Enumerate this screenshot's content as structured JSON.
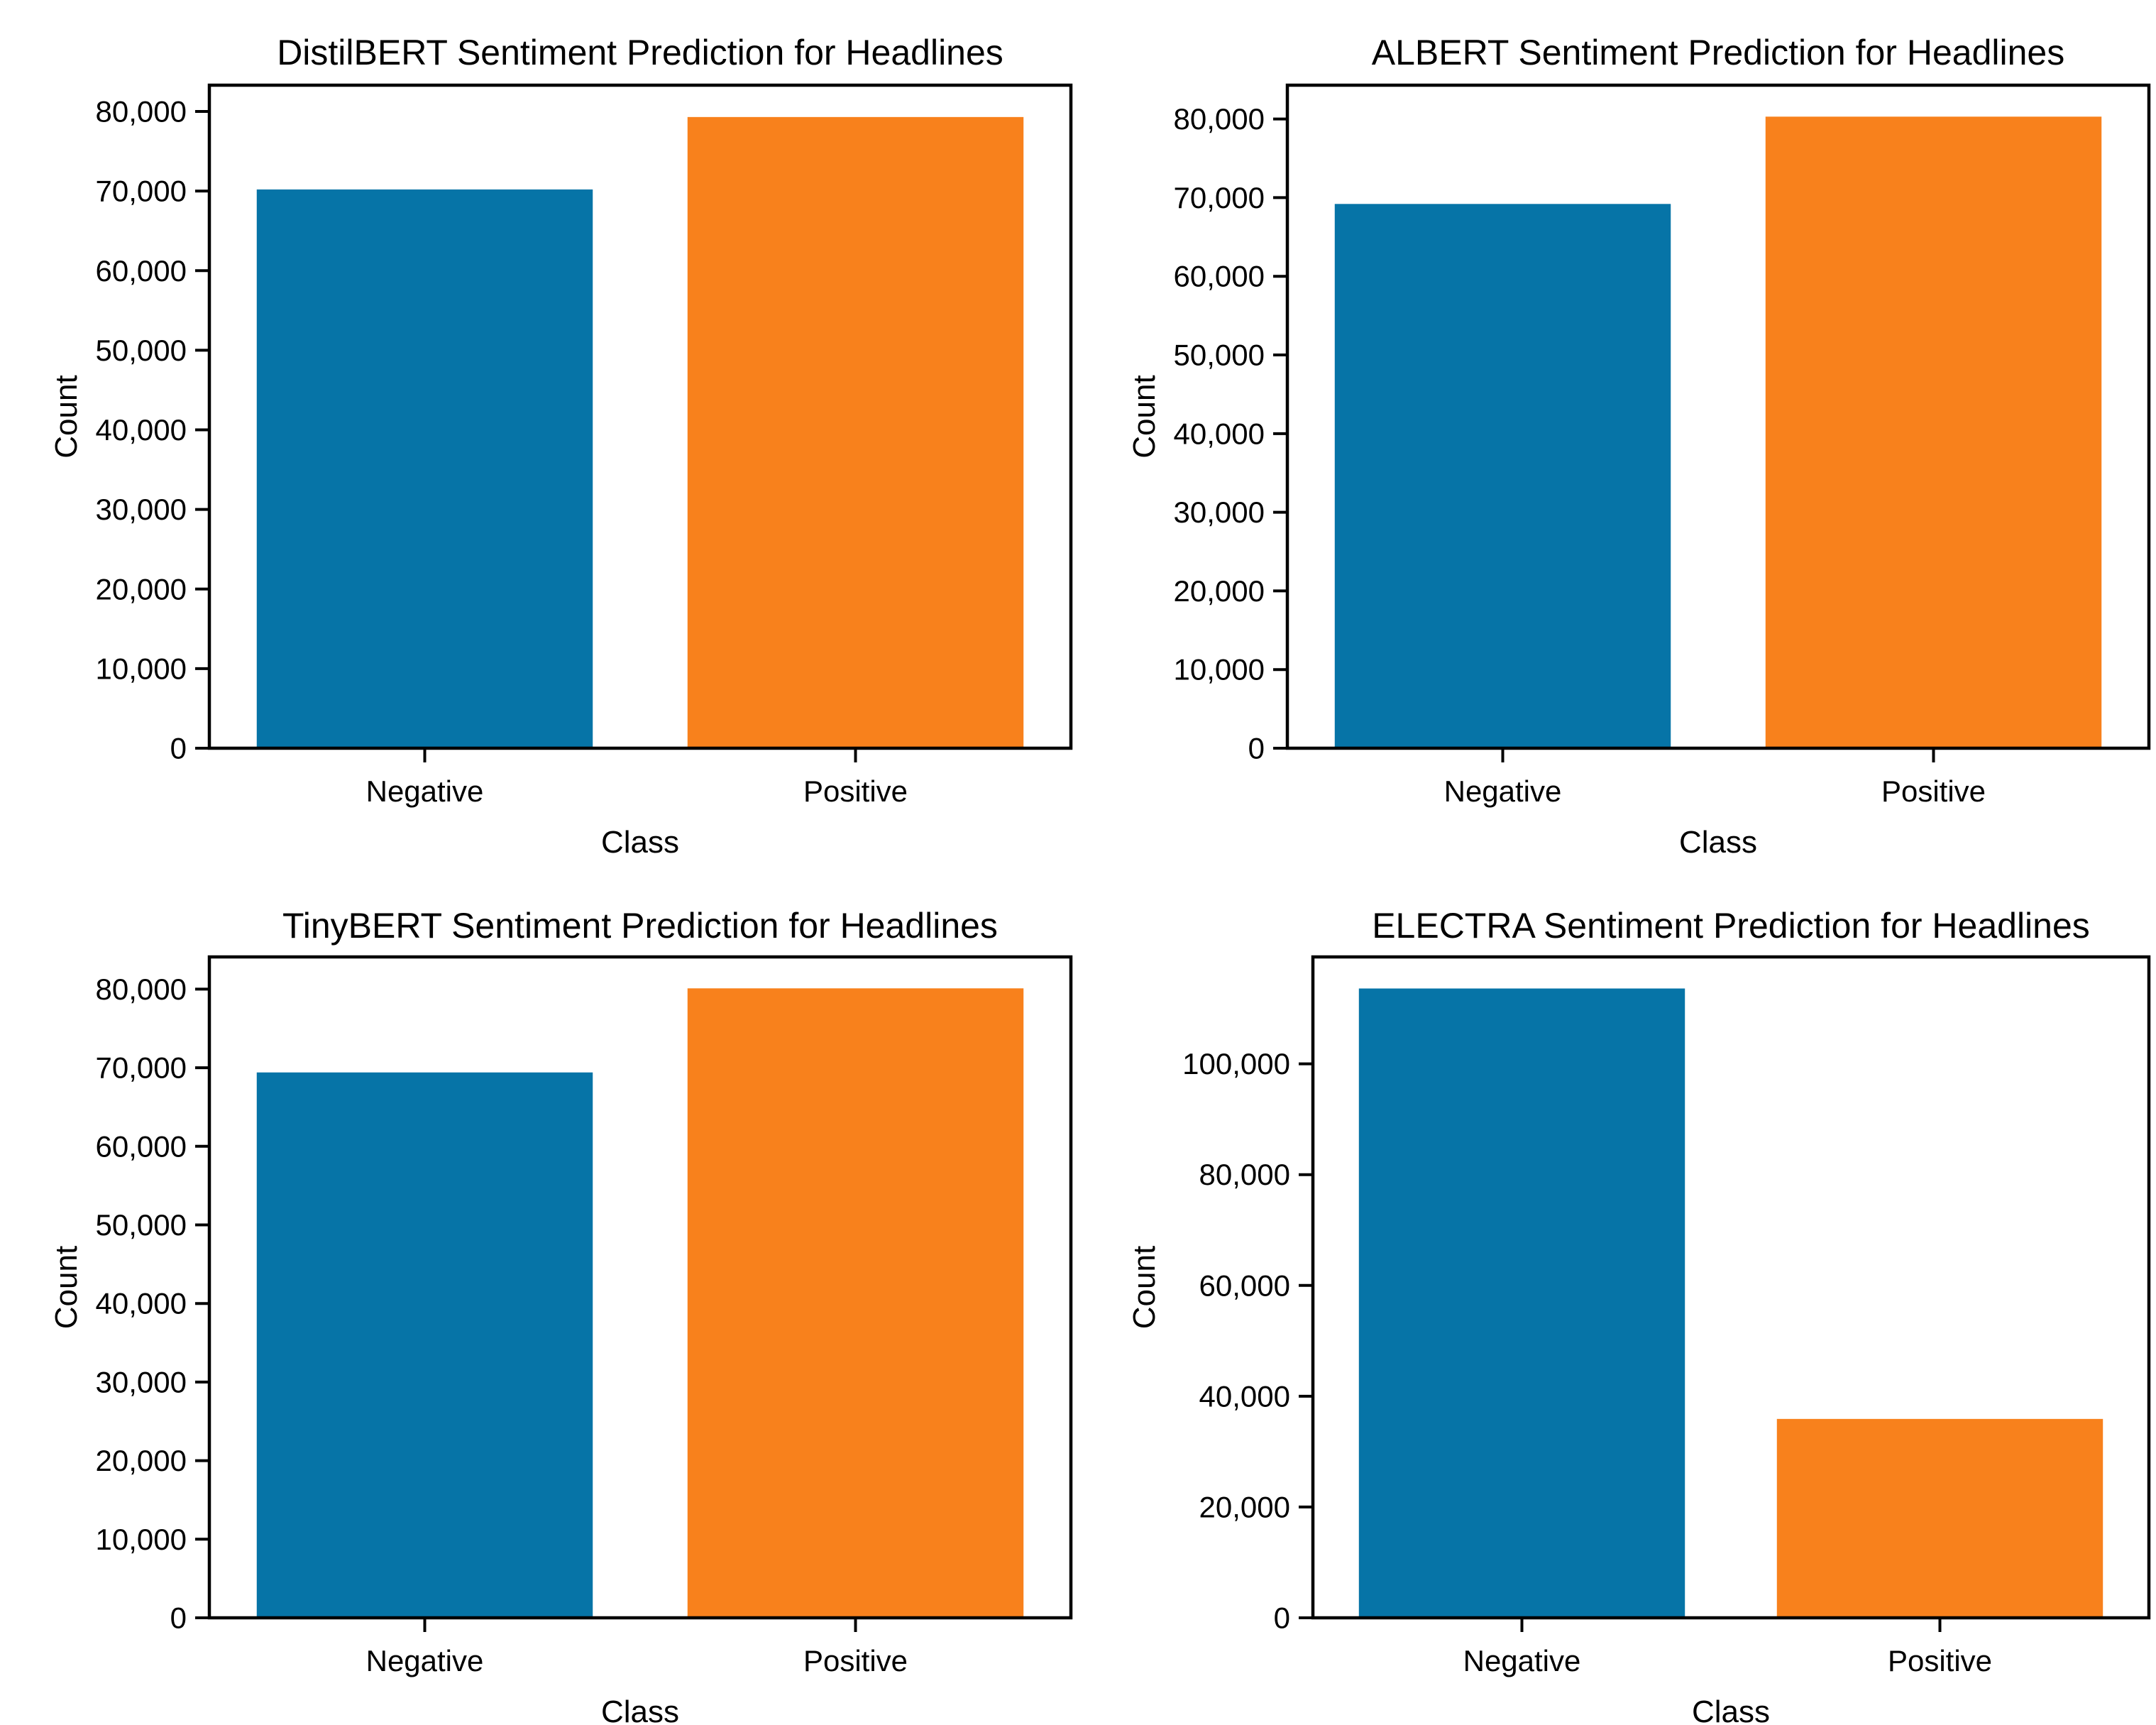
{
  "page": {
    "background": "#ffffff",
    "text_color": "#000000",
    "axis_color": "#000000"
  },
  "chart_data": [
    {
      "type": "bar",
      "title": "DistilBERT Sentiment Prediction for Headlines",
      "categories": [
        "Negative",
        "Positive"
      ],
      "values": [
        70200,
        79300
      ],
      "xlabel": "Class",
      "ylabel": "Count",
      "ytick_step": 10000,
      "ytick_max": 80000,
      "ylim": [
        0,
        83300
      ],
      "bar_colors": [
        "#0674a7",
        "#f8811c"
      ],
      "grid": false,
      "legend": false
    },
    {
      "type": "bar",
      "title": "ALBERT Sentiment Prediction for Headlines",
      "categories": [
        "Negative",
        "Positive"
      ],
      "values": [
        69200,
        80300
      ],
      "xlabel": "Class",
      "ylabel": "Count",
      "ytick_step": 10000,
      "ytick_max": 80000,
      "ylim": [
        0,
        84300
      ],
      "bar_colors": [
        "#0674a7",
        "#f8811c"
      ],
      "grid": false,
      "legend": false
    },
    {
      "type": "bar",
      "title": "TinyBERT Sentiment Prediction for Headlines",
      "categories": [
        "Negative",
        "Positive"
      ],
      "values": [
        69400,
        80100
      ],
      "xlabel": "Class",
      "ylabel": "Count",
      "ytick_step": 10000,
      "ytick_max": 80000,
      "ylim": [
        0,
        84100
      ],
      "bar_colors": [
        "#0674a7",
        "#f8811c"
      ],
      "grid": false,
      "legend": false
    },
    {
      "type": "bar",
      "title": "ELECTRA Sentiment Prediction for Headlines",
      "categories": [
        "Negative",
        "Positive"
      ],
      "values": [
        113600,
        35900
      ],
      "xlabel": "Class",
      "ylabel": "Count",
      "ytick_step": 20000,
      "ytick_max": 100000,
      "ylim": [
        0,
        119300
      ],
      "bar_colors": [
        "#0674a7",
        "#f8811c"
      ],
      "grid": false,
      "legend": false
    }
  ]
}
